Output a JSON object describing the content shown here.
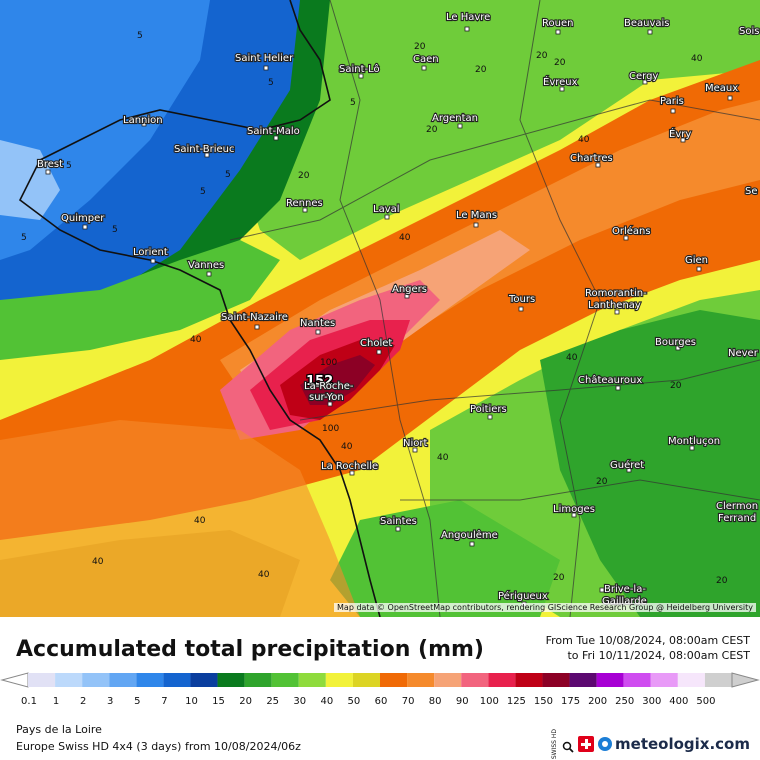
{
  "map": {
    "attribution": "Map data © OpenStreetMap contributors, rendering GIScience Research Group @ Heidelberg University",
    "max_label": "152",
    "cities": [
      {
        "name": "Le Havre"
      },
      {
        "name": "Rouen"
      },
      {
        "name": "Beauvais"
      },
      {
        "name": "Sois"
      },
      {
        "name": "Saint Helier"
      },
      {
        "name": "Saint-Lô"
      },
      {
        "name": "Caen"
      },
      {
        "name": "Évreux"
      },
      {
        "name": "Cergy"
      },
      {
        "name": "Meaux"
      },
      {
        "name": "Paris"
      },
      {
        "name": "Évry"
      },
      {
        "name": "Lannion"
      },
      {
        "name": "Saint-Malo"
      },
      {
        "name": "Saint-Brieuc"
      },
      {
        "name": "Argentan"
      },
      {
        "name": "Chartres"
      },
      {
        "name": "Brest"
      },
      {
        "name": "Rennes"
      },
      {
        "name": "Se"
      },
      {
        "name": "Quimper"
      },
      {
        "name": "Laval"
      },
      {
        "name": "Le Mans"
      },
      {
        "name": "Orléans"
      },
      {
        "name": "Lorient"
      },
      {
        "name": "Vannes"
      },
      {
        "name": "Gien"
      },
      {
        "name": "Angers"
      },
      {
        "name": "Tours"
      },
      {
        "name": "Romorantin-"
      },
      {
        "name": "Lanthenay"
      },
      {
        "name": "Saint-Nazaire"
      },
      {
        "name": "Nantes"
      },
      {
        "name": "Cholet"
      },
      {
        "name": "Bourges"
      },
      {
        "name": "Never"
      },
      {
        "name": "La-Roche-"
      },
      {
        "name": "sur-Yon"
      },
      {
        "name": "Châteauroux"
      },
      {
        "name": "Poitiers"
      },
      {
        "name": "Niort"
      },
      {
        "name": "Montluçon"
      },
      {
        "name": "La Rochelle"
      },
      {
        "name": "Guéret"
      },
      {
        "name": "Clermon"
      },
      {
        "name": "Ferrand"
      },
      {
        "name": "Saintes"
      },
      {
        "name": "Limoges"
      },
      {
        "name": "Angoulême"
      },
      {
        "name": "Périgueux"
      },
      {
        "name": "Brive-la-"
      },
      {
        "name": "Gaillarde"
      }
    ],
    "contour_labels": [
      "5",
      "5",
      "5",
      "5",
      "5",
      "5",
      "5",
      "5",
      "20",
      "20",
      "20",
      "20",
      "20",
      "20",
      "40",
      "40",
      "40",
      "40",
      "40",
      "40",
      "40",
      "40",
      "40",
      "40",
      "100",
      "100",
      "20",
      "20",
      "20",
      "20"
    ]
  },
  "header": {
    "title": "Accumulated total precipitation (mm)",
    "from": "From Tue 10/08/2024, 08:00am CEST",
    "to": "to Fri 10/11/2024, 08:00am CEST"
  },
  "legend": {
    "labels": [
      "0.1",
      "1",
      "2",
      "3",
      "5",
      "7",
      "10",
      "15",
      "20",
      "25",
      "30",
      "40",
      "50",
      "60",
      "70",
      "80",
      "90",
      "100",
      "125",
      "150",
      "175",
      "200",
      "250",
      "300",
      "400",
      "500"
    ],
    "colors": [
      "#e1e1f5",
      "#bcd9fb",
      "#93c3f8",
      "#62a6f3",
      "#2f86ea",
      "#1464cf",
      "#0a3e9e",
      "#0a7a1e",
      "#2fa42c",
      "#52c235",
      "#8fdb3c",
      "#f2f23a",
      "#dcd424",
      "#f06a05",
      "#f58a2c",
      "#f6a376",
      "#f2647e",
      "#e8214d",
      "#bf0016",
      "#8c0025",
      "#5c0870",
      "#a700d4",
      "#cf4cf0",
      "#e89af7",
      "#f6e6fb",
      "#cfcfcf"
    ]
  },
  "footer": {
    "region": "Pays de la Loire",
    "model": "Europe Swiss HD 4x4 (3 days) from  10/08/2024/06z",
    "swiss_hd": "SWISS HD",
    "brand": "meteologix.com"
  }
}
